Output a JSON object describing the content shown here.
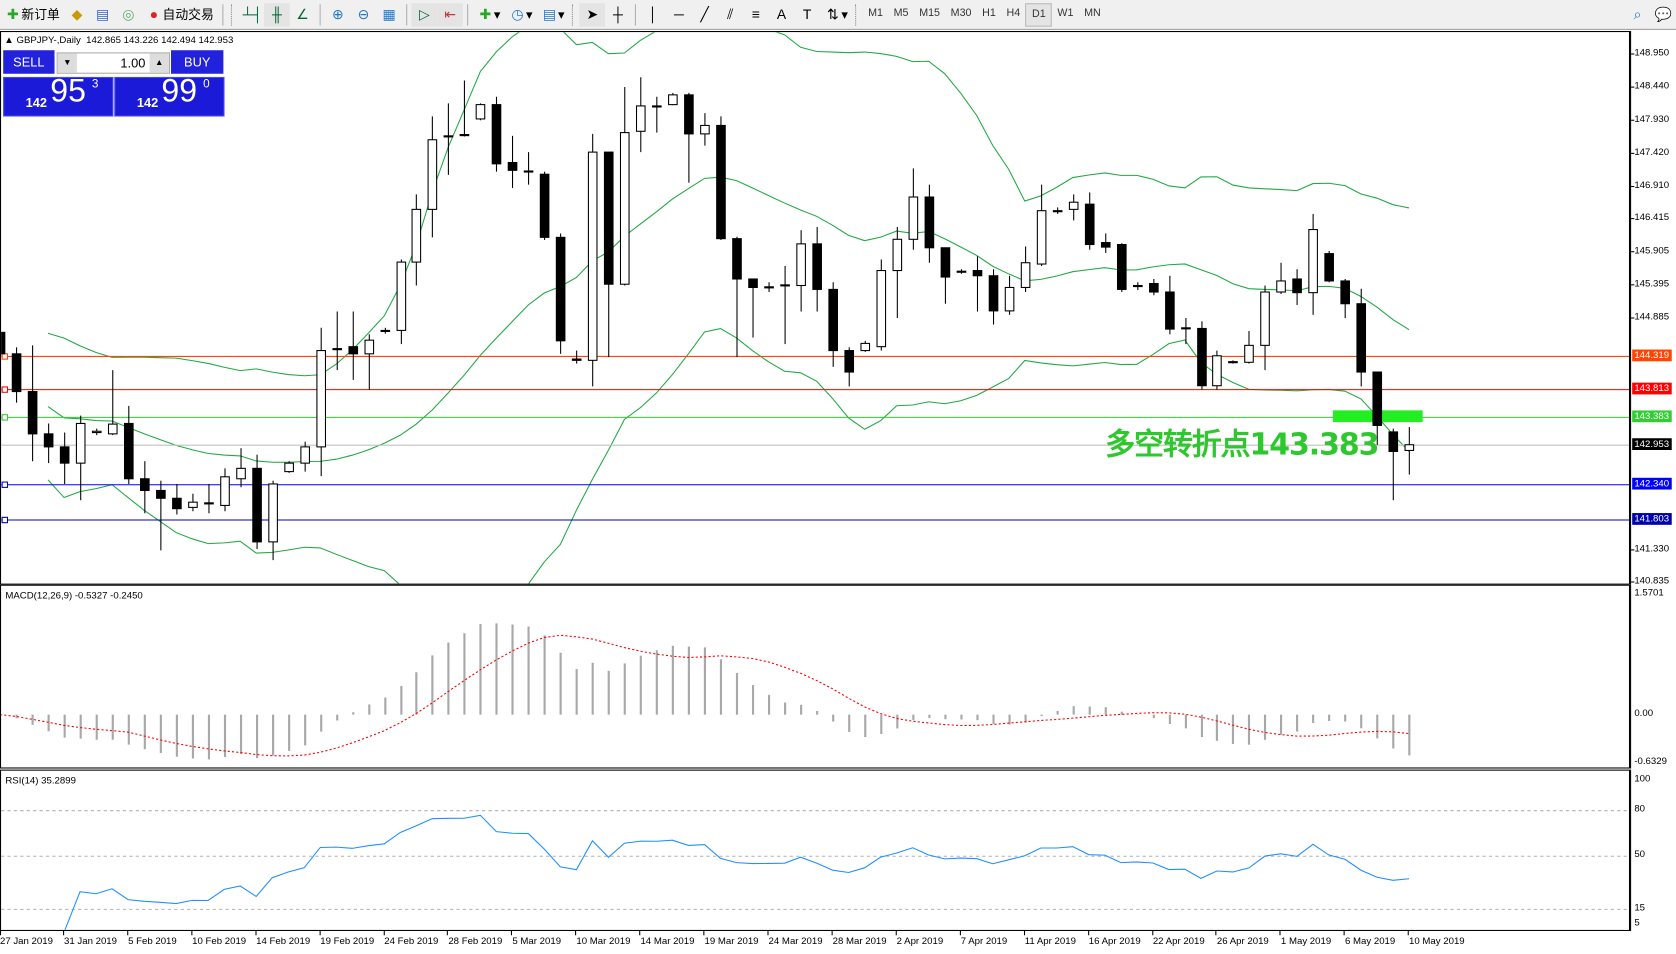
{
  "toolbar": {
    "new_order": "新订单",
    "auto_trading": "自动交易",
    "timeframes": [
      "M1",
      "M5",
      "M15",
      "M30",
      "H1",
      "H4",
      "D1",
      "W1",
      "MN"
    ],
    "active_timeframe": "D1"
  },
  "chart": {
    "symbol_info": "GBPJPY-,Daily",
    "ohlc_info": "142.865 143.226 142.494 142.953",
    "trade_panel": {
      "sell": "SELL",
      "buy": "BUY",
      "lots": "1.00",
      "sell_prefix": "142",
      "sell_big": "95",
      "sell_sup": "3",
      "buy_prefix": "142",
      "buy_big": "99",
      "buy_sup": "0"
    },
    "annotation": "多空转折点143.383",
    "price_axis": [
      "148.950",
      "148.440",
      "147.930",
      "147.420",
      "146.910",
      "146.415",
      "145.905",
      "145.395",
      "144.885",
      "141.330",
      "140.835"
    ],
    "levels": [
      {
        "label": "144.319",
        "value": 144.319,
        "color": "#ff4500"
      },
      {
        "label": "143.813",
        "value": 143.813,
        "color": "#ff0000"
      },
      {
        "label": "143.383",
        "value": 143.383,
        "color": "#32cd32"
      },
      {
        "label": "142.953",
        "value": 142.953,
        "color": "#000000",
        "line": "#c0c0c0"
      },
      {
        "label": "142.340",
        "value": 142.34,
        "color": "#0000ff"
      },
      {
        "label": "141.803",
        "value": 141.803,
        "color": "#0000aa"
      }
    ],
    "dates": [
      "27 Jan 2019",
      "31 Jan 2019",
      "5 Feb 2019",
      "10 Feb 2019",
      "14 Feb 2019",
      "19 Feb 2019",
      "24 Feb 2019",
      "28 Feb 2019",
      "5 Mar 2019",
      "10 Mar 2019",
      "14 Mar 2019",
      "19 Mar 2019",
      "24 Mar 2019",
      "28 Mar 2019",
      "2 Apr 2019",
      "7 Apr 2019",
      "11 Apr 2019",
      "16 Apr 2019",
      "22 Apr 2019",
      "26 Apr 2019",
      "1 May 2019",
      "6 May 2019",
      "10 May 2019"
    ],
    "candles": [
      [
        144.68,
        144.75,
        144.3,
        144.35
      ],
      [
        144.35,
        144.45,
        143.6,
        143.77
      ],
      [
        143.77,
        144.48,
        142.7,
        143.12
      ],
      [
        143.12,
        143.28,
        142.67,
        142.92
      ],
      [
        142.92,
        143.14,
        142.35,
        142.67
      ],
      [
        142.67,
        143.4,
        142.1,
        143.28
      ],
      [
        143.14,
        143.2,
        143.1,
        143.16
      ],
      [
        143.12,
        144.1,
        143.1,
        143.27
      ],
      [
        143.28,
        143.55,
        142.35,
        142.43
      ],
      [
        142.43,
        142.7,
        141.9,
        142.25
      ],
      [
        142.25,
        142.4,
        141.33,
        142.13
      ],
      [
        142.13,
        142.35,
        141.88,
        141.97
      ],
      [
        141.99,
        142.2,
        141.93,
        142.07
      ],
      [
        142.05,
        142.35,
        141.9,
        142.06
      ],
      [
        142.02,
        142.59,
        141.93,
        142.46
      ],
      [
        142.43,
        142.9,
        142.3,
        142.59
      ],
      [
        142.59,
        142.8,
        141.35,
        141.46
      ],
      [
        141.46,
        142.4,
        141.18,
        142.35
      ],
      [
        142.54,
        142.7,
        142.52,
        142.67
      ],
      [
        142.67,
        143.0,
        142.54,
        142.92
      ],
      [
        142.92,
        144.75,
        142.47,
        144.4
      ],
      [
        144.42,
        145.0,
        144.1,
        144.43
      ],
      [
        144.46,
        145.0,
        143.95,
        144.35
      ],
      [
        144.35,
        144.65,
        143.8,
        144.56
      ],
      [
        144.7,
        144.75,
        144.66,
        144.71
      ],
      [
        144.71,
        145.8,
        144.5,
        145.76
      ],
      [
        145.76,
        146.8,
        145.4,
        146.57
      ],
      [
        146.57,
        148.0,
        146.14,
        147.64
      ],
      [
        147.69,
        148.2,
        147.1,
        147.7
      ],
      [
        147.72,
        148.55,
        147.69,
        147.71
      ],
      [
        147.96,
        148.2,
        147.94,
        148.18
      ],
      [
        148.18,
        148.3,
        147.15,
        147.27
      ],
      [
        147.29,
        147.7,
        146.9,
        147.17
      ],
      [
        147.16,
        147.45,
        146.95,
        147.15
      ],
      [
        147.11,
        147.15,
        146.1,
        146.14
      ],
      [
        146.14,
        146.2,
        144.35,
        144.55
      ],
      [
        144.27,
        144.4,
        144.2,
        144.25
      ],
      [
        144.25,
        147.73,
        143.85,
        147.45
      ],
      [
        147.45,
        147.45,
        144.3,
        145.42
      ],
      [
        145.42,
        148.45,
        145.4,
        147.75
      ],
      [
        147.77,
        148.6,
        147.45,
        148.16
      ],
      [
        148.16,
        148.3,
        147.75,
        148.15
      ],
      [
        148.18,
        148.36,
        148.17,
        148.33
      ],
      [
        148.33,
        148.36,
        146.98,
        147.73
      ],
      [
        147.73,
        148.05,
        147.55,
        147.86
      ],
      [
        147.86,
        148.0,
        146.1,
        146.12
      ],
      [
        146.12,
        146.15,
        144.3,
        145.5
      ],
      [
        145.5,
        145.5,
        144.6,
        145.37
      ],
      [
        145.37,
        145.45,
        145.3,
        145.38
      ],
      [
        145.4,
        145.7,
        144.5,
        145.41
      ],
      [
        145.4,
        146.25,
        145.0,
        146.04
      ],
      [
        146.04,
        146.3,
        145.0,
        145.34
      ],
      [
        145.34,
        145.45,
        144.15,
        144.4
      ],
      [
        144.4,
        144.45,
        143.85,
        144.07
      ],
      [
        144.4,
        144.55,
        144.38,
        144.51
      ],
      [
        144.46,
        145.8,
        144.4,
        145.63
      ],
      [
        145.63,
        146.3,
        144.9,
        146.11
      ],
      [
        146.11,
        147.2,
        145.95,
        146.76
      ],
      [
        146.76,
        146.95,
        145.75,
        145.98
      ],
      [
        145.98,
        145.98,
        145.12,
        145.53
      ],
      [
        145.61,
        145.65,
        145.58,
        145.62
      ],
      [
        145.63,
        145.85,
        145.0,
        145.55
      ],
      [
        145.55,
        145.65,
        144.8,
        145.01
      ],
      [
        145.01,
        145.55,
        144.95,
        145.37
      ],
      [
        145.37,
        146.0,
        145.3,
        145.75
      ],
      [
        145.73,
        146.95,
        145.7,
        146.55
      ],
      [
        146.54,
        146.6,
        146.5,
        146.55
      ],
      [
        146.57,
        146.8,
        146.4,
        146.68
      ],
      [
        146.65,
        146.83,
        145.95,
        146.03
      ],
      [
        146.06,
        146.2,
        145.9,
        145.99
      ],
      [
        146.03,
        146.05,
        145.3,
        145.34
      ],
      [
        145.4,
        145.45,
        145.33,
        145.39
      ],
      [
        145.43,
        145.5,
        145.25,
        145.3
      ],
      [
        145.3,
        145.55,
        144.65,
        144.73
      ],
      [
        144.74,
        144.9,
        144.5,
        144.75
      ],
      [
        144.74,
        144.85,
        143.8,
        143.86
      ],
      [
        143.86,
        144.4,
        143.8,
        144.32
      ],
      [
        144.22,
        144.25,
        144.2,
        144.23
      ],
      [
        144.22,
        144.7,
        144.2,
        144.48
      ],
      [
        144.48,
        145.4,
        144.1,
        145.3
      ],
      [
        145.3,
        145.75,
        145.27,
        145.47
      ],
      [
        145.5,
        145.65,
        145.1,
        145.29
      ],
      [
        145.29,
        146.5,
        144.95,
        146.26
      ],
      [
        145.89,
        145.93,
        145.45,
        145.47
      ],
      [
        145.47,
        145.5,
        144.9,
        145.12
      ],
      [
        145.12,
        145.35,
        143.85,
        144.07
      ],
      [
        144.07,
        144.07,
        142.95,
        143.25
      ],
      [
        143.15,
        143.2,
        142.1,
        142.85
      ],
      [
        142.865,
        143.226,
        142.494,
        142.953
      ]
    ],
    "colors": {
      "bands": "#22a845",
      "bull": "#ffffff",
      "bear": "#000000",
      "annotation": "#2ec82e"
    }
  },
  "macd": {
    "label": "MACD(12,26,9) -0.5327 -0.2450",
    "axis": [
      "1.5701",
      "0.00",
      "-0.6329"
    ],
    "range": [
      -0.6329,
      1.5701
    ],
    "colors": {
      "hist": "#c0c0c0",
      "signal": "#ff0000"
    }
  },
  "rsi": {
    "label": "RSI(14) 35.2899",
    "axis": [
      "100",
      "80",
      "50",
      "15",
      "5"
    ],
    "levels": [
      80,
      50,
      15
    ],
    "color": "#1e90ff"
  }
}
